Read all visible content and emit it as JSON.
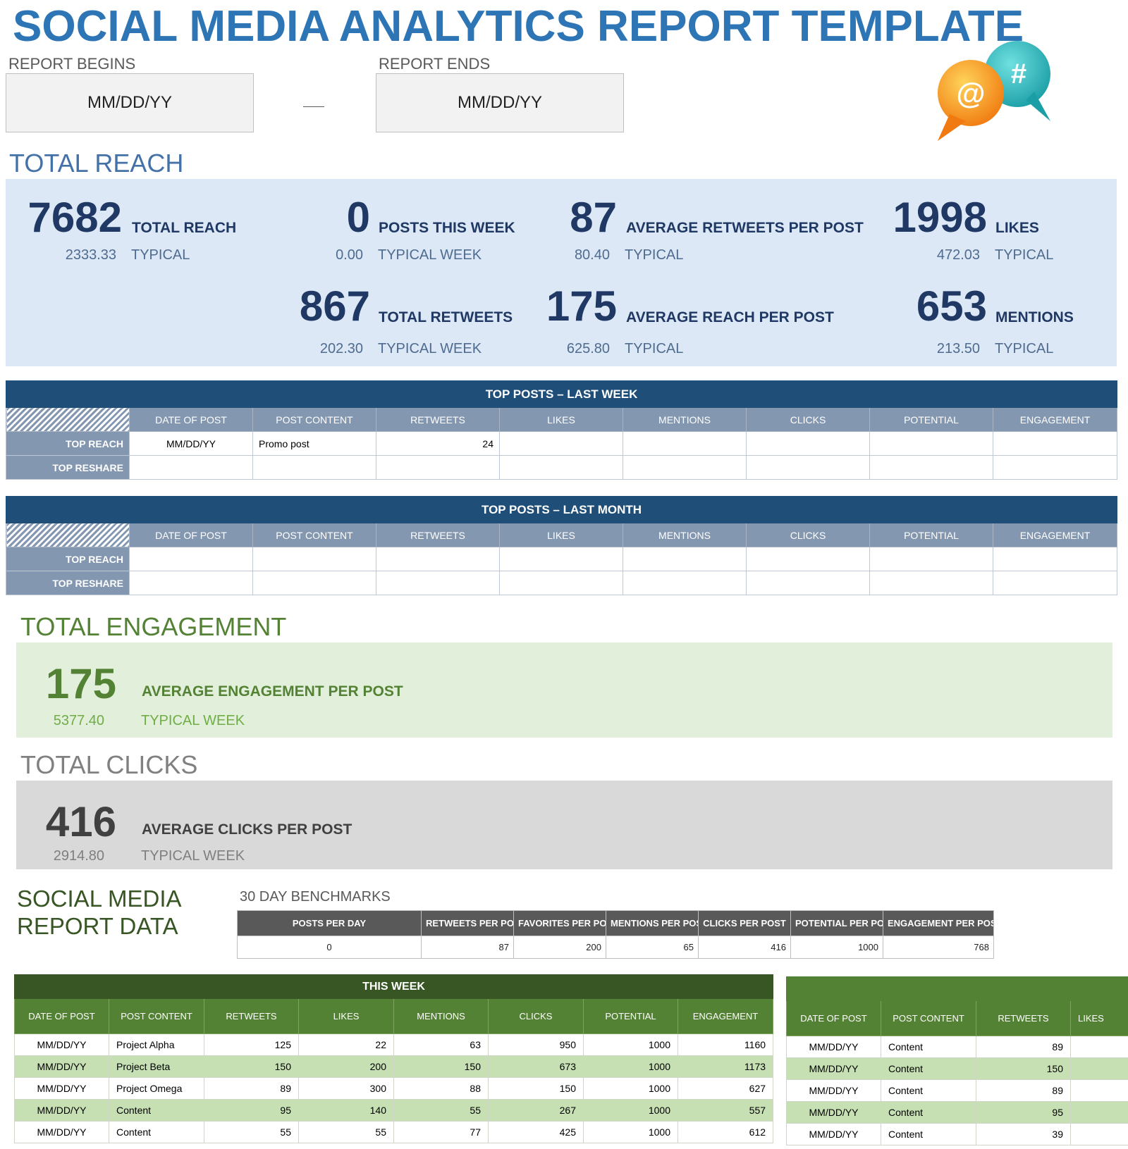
{
  "title": "SOCIAL MEDIA ANALYTICS REPORT TEMPLATE",
  "report": {
    "begins_label": "REPORT BEGINS",
    "begins_value": "MM/DD/YY",
    "ends_label": "REPORT ENDS",
    "ends_value": "MM/DD/YY"
  },
  "logo_icons": [
    "at-bubble-icon",
    "hashtag-bubble-icon"
  ],
  "logo_text": {
    "at": "@",
    "hash": "#"
  },
  "reach": {
    "section_title": "TOTAL REACH",
    "metrics": [
      {
        "value": "7682",
        "label": "TOTAL REACH",
        "typical_value": "2333.33",
        "typical_label": "TYPICAL"
      },
      {
        "value": "0",
        "label": "POSTS THIS WEEK",
        "typical_value": "0.00",
        "typical_label": "TYPICAL WEEK"
      },
      {
        "value": "87",
        "label": "AVERAGE RETWEETS PER POST",
        "typical_value": "80.40",
        "typical_label": "TYPICAL"
      },
      {
        "value": "1998",
        "label": "LIKES",
        "typical_value": "472.03",
        "typical_label": "TYPICAL"
      },
      {
        "value": "867",
        "label": "TOTAL RETWEETS",
        "typical_value": "202.30",
        "typical_label": "TYPICAL WEEK"
      },
      {
        "value": "175",
        "label": "AVERAGE REACH PER POST",
        "typical_value": "625.80",
        "typical_label": "TYPICAL"
      },
      {
        "value": "653",
        "label": "MENTIONS",
        "typical_value": "213.50",
        "typical_label": "TYPICAL"
      }
    ]
  },
  "top_posts_columns": [
    "DATE OF POST",
    "POST CONTENT",
    "RETWEETS",
    "LIKES",
    "MENTIONS",
    "CLICKS",
    "POTENTIAL",
    "ENGAGEMENT"
  ],
  "top_posts_week": {
    "title": "TOP POSTS – LAST WEEK",
    "rows": [
      {
        "label": "TOP REACH",
        "cells": [
          "MM/DD/YY",
          "Promo post",
          "24",
          "",
          "",
          "",
          "",
          ""
        ]
      },
      {
        "label": "TOP RESHARE",
        "cells": [
          "",
          "",
          "",
          "",
          "",
          "",
          "",
          ""
        ]
      }
    ]
  },
  "top_posts_month": {
    "title": "TOP POSTS – LAST MONTH",
    "rows": [
      {
        "label": "TOP REACH",
        "cells": [
          "",
          "",
          "",
          "",
          "",
          "",
          "",
          ""
        ]
      },
      {
        "label": "TOP RESHARE",
        "cells": [
          "",
          "",
          "",
          "",
          "",
          "",
          "",
          ""
        ]
      }
    ]
  },
  "engagement": {
    "section_title": "TOTAL ENGAGEMENT",
    "value": "175",
    "label": "AVERAGE ENGAGEMENT PER POST",
    "typical_value": "5377.40",
    "typical_label": "TYPICAL WEEK"
  },
  "clicks": {
    "section_title": "TOTAL CLICKS",
    "value": "416",
    "label": "AVERAGE CLICKS PER POST",
    "typical_value": "2914.80",
    "typical_label": "TYPICAL WEEK"
  },
  "report_data_title_line1": "SOCIAL MEDIA",
  "report_data_title_line2": "REPORT DATA",
  "benchmarks": {
    "title": "30 DAY BENCHMARKS",
    "headers": [
      "POSTS PER DAY",
      "RETWEETS PER POST",
      "FAVORITES PER POST",
      "MENTIONS PER POST",
      "CLICKS PER POST",
      "POTENTIAL PER POST",
      "ENGAGEMENT PER POST"
    ],
    "values": [
      "0",
      "87",
      "200",
      "65",
      "416",
      "1000",
      "768"
    ]
  },
  "this_week": {
    "title": "THIS WEEK",
    "headers": [
      "DATE OF POST",
      "POST CONTENT",
      "RETWEETS",
      "LIKES",
      "MENTIONS",
      "CLICKS",
      "POTENTIAL",
      "ENGAGEMENT"
    ],
    "rows": [
      [
        "MM/DD/YY",
        "Project Alpha",
        "125",
        "22",
        "63",
        "950",
        "1000",
        "1160"
      ],
      [
        "MM/DD/YY",
        "Project Beta",
        "150",
        "200",
        "150",
        "673",
        "1000",
        "1173"
      ],
      [
        "MM/DD/YY",
        "Project Omega",
        "89",
        "300",
        "88",
        "150",
        "1000",
        "627"
      ],
      [
        "MM/DD/YY",
        "Content",
        "95",
        "140",
        "55",
        "267",
        "1000",
        "557"
      ],
      [
        "MM/DD/YY",
        "Content",
        "55",
        "55",
        "77",
        "425",
        "1000",
        "612"
      ]
    ]
  },
  "second_table": {
    "title": "",
    "headers": [
      "DATE OF POST",
      "POST CONTENT",
      "RETWEETS",
      "LIKES"
    ],
    "rows": [
      [
        "MM/DD/YY",
        "Content",
        "89",
        ""
      ],
      [
        "MM/DD/YY",
        "Content",
        "150",
        ""
      ],
      [
        "MM/DD/YY",
        "Content",
        "89",
        ""
      ],
      [
        "MM/DD/YY",
        "Content",
        "95",
        ""
      ],
      [
        "MM/DD/YY",
        "Content",
        "39",
        ""
      ]
    ]
  }
}
